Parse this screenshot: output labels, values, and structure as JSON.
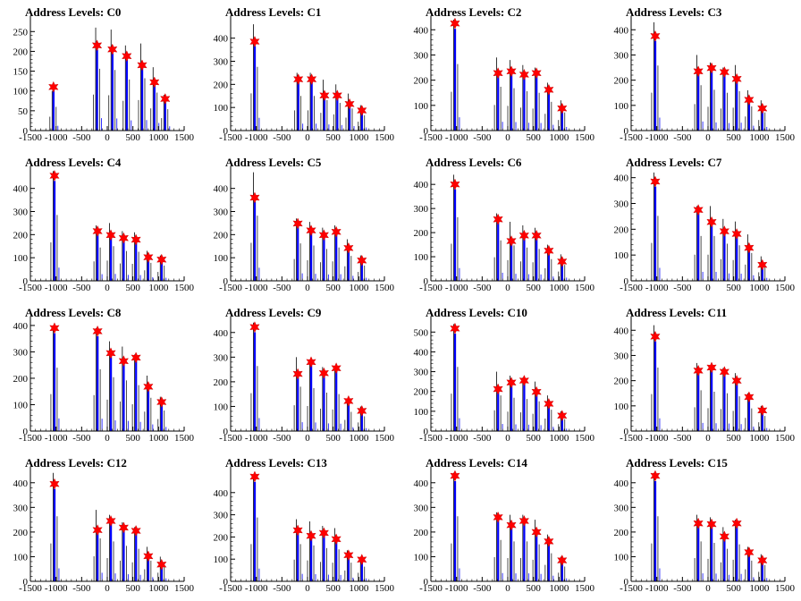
{
  "title_prefix": "Address Levels:",
  "x_ticks": [
    -1500,
    -1000,
    -500,
    0,
    500,
    1000,
    1500
  ],
  "xlim": [
    -1500,
    1500
  ],
  "colors": {
    "hist": "#0000ff",
    "peak_marker": "#ff0000",
    "axis": "#000000"
  },
  "chart_data": [
    {
      "type": "bar",
      "title_suffix": "C0",
      "ylim": [
        0,
        280
      ],
      "y_ticks": [
        0,
        50,
        100,
        150,
        200,
        250
      ],
      "peak_x": [
        -1050,
        -200,
        100,
        380,
        680,
        920,
        1130
      ],
      "peak_y": [
        110,
        215,
        205,
        188,
        165,
        122,
        80
      ],
      "hist_y": [
        100,
        260,
        255,
        215,
        220,
        160,
        90
      ]
    },
    {
      "type": "bar",
      "title_suffix": "C1",
      "ylim": [
        0,
        480
      ],
      "y_ticks": [
        0,
        100,
        200,
        300,
        400
      ],
      "peak_x": [
        -1030,
        -180,
        80,
        330,
        580,
        820,
        1060
      ],
      "peak_y": [
        385,
        222,
        222,
        152,
        152,
        115,
        87
      ],
      "hist_y": [
        460,
        250,
        250,
        220,
        200,
        160,
        110
      ]
    },
    {
      "type": "bar",
      "title_suffix": "C2",
      "ylim": [
        0,
        440
      ],
      "y_ticks": [
        0,
        100,
        200,
        300,
        400
      ],
      "peak_x": [
        -1030,
        -190,
        70,
        320,
        560,
        800,
        1060
      ],
      "peak_y": [
        425,
        228,
        235,
        222,
        228,
        162,
        88
      ],
      "hist_y": [
        440,
        290,
        280,
        260,
        250,
        190,
        120
      ]
    },
    {
      "type": "bar",
      "title_suffix": "C3",
      "ylim": [
        0,
        440
      ],
      "y_ticks": [
        0,
        100,
        200,
        300,
        400
      ],
      "peak_x": [
        -1030,
        -190,
        70,
        320,
        560,
        800,
        1060
      ],
      "peak_y": [
        375,
        235,
        248,
        232,
        205,
        122,
        88
      ],
      "hist_y": [
        430,
        300,
        270,
        250,
        260,
        160,
        120
      ]
    },
    {
      "type": "bar",
      "title_suffix": "C4",
      "ylim": [
        0,
        480
      ],
      "y_ticks": [
        0,
        100,
        200,
        300,
        400
      ],
      "peak_x": [
        -1030,
        -190,
        70,
        320,
        560,
        800,
        1060
      ],
      "peak_y": [
        455,
        215,
        198,
        185,
        178,
        102,
        92
      ],
      "hist_y": [
        475,
        240,
        250,
        215,
        210,
        130,
        110
      ]
    },
    {
      "type": "bar",
      "title_suffix": "C5",
      "ylim": [
        0,
        480
      ],
      "y_ticks": [
        0,
        100,
        200,
        300,
        400
      ],
      "peak_x": [
        -1030,
        -190,
        70,
        320,
        560,
        800,
        1060
      ],
      "peak_y": [
        360,
        248,
        218,
        198,
        212,
        142,
        88
      ],
      "hist_y": [
        470,
        270,
        255,
        230,
        240,
        180,
        110
      ]
    },
    {
      "type": "bar",
      "title_suffix": "C6",
      "ylim": [
        0,
        460
      ],
      "y_ticks": [
        0,
        100,
        200,
        300,
        400
      ],
      "peak_x": [
        -1030,
        -190,
        70,
        320,
        560,
        800,
        1060
      ],
      "peak_y": [
        400,
        255,
        165,
        188,
        188,
        125,
        80
      ],
      "hist_y": [
        440,
        280,
        245,
        230,
        220,
        150,
        110
      ]
    },
    {
      "type": "bar",
      "title_suffix": "C7",
      "ylim": [
        0,
        430
      ],
      "y_ticks": [
        0,
        100,
        200,
        300,
        400
      ],
      "peak_x": [
        -1030,
        -190,
        70,
        320,
        560,
        800,
        1060
      ],
      "peak_y": [
        385,
        275,
        228,
        192,
        182,
        128,
        62
      ],
      "hist_y": [
        420,
        290,
        290,
        240,
        230,
        180,
        95
      ]
    },
    {
      "type": "bar",
      "title_suffix": "C8",
      "ylim": [
        0,
        420
      ],
      "y_ticks": [
        0,
        100,
        200,
        300,
        400
      ],
      "peak_x": [
        -1030,
        -190,
        70,
        320,
        560,
        800,
        1060
      ],
      "peak_y": [
        390,
        378,
        295,
        265,
        278,
        168,
        110
      ],
      "hist_y": [
        400,
        390,
        340,
        320,
        290,
        210,
        130
      ]
    },
    {
      "type": "bar",
      "title_suffix": "C9",
      "ylim": [
        0,
        450
      ],
      "y_ticks": [
        0,
        100,
        200,
        300,
        400
      ],
      "peak_x": [
        -1030,
        -190,
        70,
        320,
        560,
        800,
        1060
      ],
      "peak_y": [
        422,
        232,
        280,
        235,
        255,
        122,
        82
      ],
      "hist_y": [
        440,
        300,
        290,
        260,
        250,
        130,
        100
      ]
    },
    {
      "type": "bar",
      "title_suffix": "C10",
      "ylim": [
        0,
        560
      ],
      "y_ticks": [
        0,
        100,
        200,
        300,
        400,
        500
      ],
      "peak_x": [
        -1030,
        -190,
        70,
        320,
        560,
        800,
        1060
      ],
      "peak_y": [
        518,
        212,
        245,
        255,
        198,
        138,
        78
      ],
      "hist_y": [
        540,
        300,
        280,
        270,
        250,
        180,
        100
      ]
    },
    {
      "type": "bar",
      "title_suffix": "C11",
      "ylim": [
        0,
        440
      ],
      "y_ticks": [
        0,
        100,
        200,
        300,
        400
      ],
      "peak_x": [
        -1030,
        -190,
        70,
        320,
        560,
        800,
        1060
      ],
      "peak_y": [
        375,
        240,
        252,
        235,
        200,
        135,
        82
      ],
      "hist_y": [
        420,
        270,
        260,
        250,
        230,
        150,
        100
      ]
    },
    {
      "type": "bar",
      "title_suffix": "C12",
      "ylim": [
        0,
        450
      ],
      "y_ticks": [
        0,
        100,
        200,
        300,
        400
      ],
      "peak_x": [
        -1030,
        -190,
        70,
        320,
        560,
        800,
        1060
      ],
      "peak_y": [
        395,
        208,
        245,
        218,
        205,
        102,
        68
      ],
      "hist_y": [
        440,
        290,
        270,
        240,
        220,
        140,
        100
      ]
    },
    {
      "type": "bar",
      "title_suffix": "C13",
      "ylim": [
        0,
        500
      ],
      "y_ticks": [
        0,
        100,
        200,
        300,
        400
      ],
      "peak_x": [
        -1030,
        -190,
        70,
        320,
        560,
        800,
        1060
      ],
      "peak_y": [
        472,
        230,
        205,
        218,
        190,
        118,
        98
      ],
      "hist_y": [
        480,
        280,
        270,
        250,
        240,
        140,
        110
      ]
    },
    {
      "type": "bar",
      "title_suffix": "C14",
      "ylim": [
        0,
        450
      ],
      "y_ticks": [
        0,
        100,
        200,
        300,
        400
      ],
      "peak_x": [
        -1030,
        -190,
        70,
        320,
        560,
        800,
        1060
      ],
      "peak_y": [
        428,
        260,
        228,
        245,
        200,
        162,
        85
      ],
      "hist_y": [
        440,
        280,
        270,
        270,
        250,
        190,
        100
      ]
    },
    {
      "type": "bar",
      "title_suffix": "C15",
      "ylim": [
        0,
        450
      ],
      "y_ticks": [
        0,
        100,
        200,
        300,
        400
      ],
      "peak_x": [
        -1030,
        -190,
        70,
        320,
        560,
        800,
        1060
      ],
      "peak_y": [
        428,
        235,
        232,
        182,
        235,
        118,
        85
      ],
      "hist_y": [
        440,
        270,
        260,
        220,
        250,
        140,
        110
      ]
    }
  ]
}
